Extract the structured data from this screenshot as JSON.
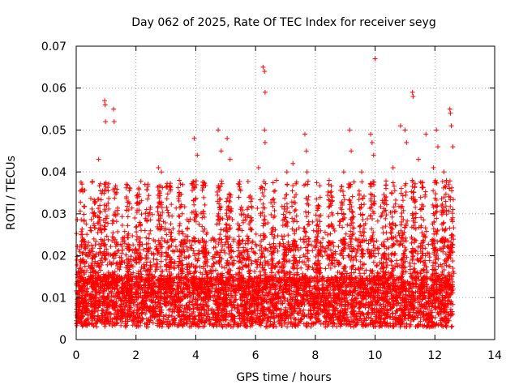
{
  "chart_data": {
    "type": "scatter",
    "title": "Day 062 of 2025, Rate Of TEC Index for receiver seyg",
    "xlabel": "GPS time / hours",
    "ylabel": "ROTI / TECUs",
    "xlim": [
      0,
      14
    ],
    "ylim": [
      0,
      0.07
    ],
    "x_ticks": [
      "0",
      "2",
      "4",
      "6",
      "8",
      "10",
      "12",
      "14"
    ],
    "y_ticks": [
      "0",
      "0.01",
      "0.02",
      "0.03",
      "0.04",
      "0.05",
      "0.06",
      "0.07"
    ],
    "grid": true,
    "marker": "+",
    "color": "#ff0000",
    "series": [
      {
        "points": [
          [
            0.95,
            0.057
          ],
          [
            0.97,
            0.056
          ],
          [
            0.98,
            0.052
          ],
          [
            1.25,
            0.055
          ],
          [
            1.27,
            0.052
          ],
          [
            2.75,
            0.041
          ],
          [
            2.85,
            0.04
          ],
          [
            3.95,
            0.048
          ],
          [
            4.05,
            0.044
          ],
          [
            4.75,
            0.05
          ],
          [
            4.85,
            0.045
          ],
          [
            5.05,
            0.048
          ],
          [
            5.15,
            0.043
          ],
          [
            6.25,
            0.065
          ],
          [
            6.3,
            0.064
          ],
          [
            6.32,
            0.059
          ],
          [
            6.3,
            0.05
          ],
          [
            6.32,
            0.047
          ],
          [
            6.1,
            0.041
          ],
          [
            7.05,
            0.04
          ],
          [
            7.25,
            0.042
          ],
          [
            7.65,
            0.049
          ],
          [
            7.7,
            0.045
          ],
          [
            7.72,
            0.04
          ],
          [
            9.15,
            0.05
          ],
          [
            9.2,
            0.045
          ],
          [
            9.85,
            0.049
          ],
          [
            9.9,
            0.047
          ],
          [
            9.95,
            0.044
          ],
          [
            10.0,
            0.067
          ],
          [
            10.85,
            0.051
          ],
          [
            11.0,
            0.05
          ],
          [
            11.05,
            0.047
          ],
          [
            11.25,
            0.059
          ],
          [
            11.27,
            0.058
          ],
          [
            11.7,
            0.049
          ],
          [
            12.05,
            0.05
          ],
          [
            12.1,
            0.046
          ],
          [
            12.5,
            0.055
          ],
          [
            12.52,
            0.054
          ],
          [
            12.55,
            0.051
          ],
          [
            12.6,
            0.046
          ],
          [
            0.75,
            0.043
          ],
          [
            1.8,
            0.036
          ],
          [
            8.45,
            0.037
          ],
          [
            8.95,
            0.04
          ],
          [
            9.55,
            0.04
          ],
          [
            10.6,
            0.041
          ],
          [
            11.45,
            0.043
          ],
          [
            11.95,
            0.041
          ],
          [
            12.3,
            0.04
          ],
          [
            3.45,
            0.038
          ],
          [
            2.3,
            0.037
          ],
          [
            5.45,
            0.037
          ],
          [
            6.7,
            0.038
          ]
        ]
      }
    ]
  }
}
